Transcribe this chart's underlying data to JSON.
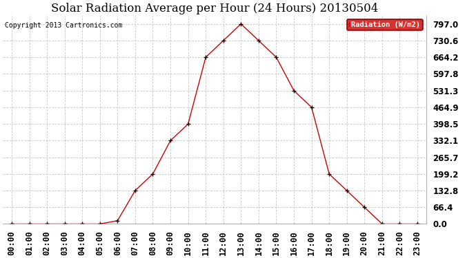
{
  "title": "Solar Radiation Average per Hour (24 Hours) 20130504",
  "copyright_text": "Copyright 2013 Cartronics.com",
  "legend_label": "Radiation (W/m2)",
  "hours": [
    "00:00",
    "01:00",
    "02:00",
    "03:00",
    "04:00",
    "05:00",
    "06:00",
    "07:00",
    "08:00",
    "09:00",
    "10:00",
    "11:00",
    "12:00",
    "13:00",
    "14:00",
    "15:00",
    "16:00",
    "17:00",
    "18:00",
    "19:00",
    "20:00",
    "21:00",
    "22:00",
    "23:00"
  ],
  "values": [
    0.0,
    0.0,
    0.0,
    0.0,
    0.0,
    0.0,
    13.0,
    133.0,
    199.0,
    332.0,
    398.0,
    664.0,
    730.6,
    797.0,
    730.6,
    664.2,
    531.3,
    464.9,
    199.2,
    132.8,
    66.4,
    0.0,
    0.0,
    0.0
  ],
  "y_ticks": [
    0.0,
    66.4,
    132.8,
    199.2,
    265.7,
    332.1,
    398.5,
    464.9,
    531.3,
    597.8,
    664.2,
    730.6,
    797.0
  ],
  "y_tick_labels": [
    "0.0",
    "66.4",
    "132.8",
    "199.2",
    "265.7",
    "332.1",
    "398.5",
    "464.9",
    "531.3",
    "597.8",
    "664.2",
    "730.6",
    "797.0"
  ],
  "line_color": "#cc0000",
  "marker": "+",
  "marker_color": "#000000",
  "background_color": "#ffffff",
  "grid_color": "#bbbbbb",
  "title_fontsize": 12,
  "tick_fontsize": 8.5,
  "copyright_fontsize": 7,
  "legend_bg": "#cc0000",
  "legend_text_color": "#ffffff",
  "ylim": [
    0.0,
    830.0
  ],
  "xlim": [
    -0.5,
    23.5
  ]
}
